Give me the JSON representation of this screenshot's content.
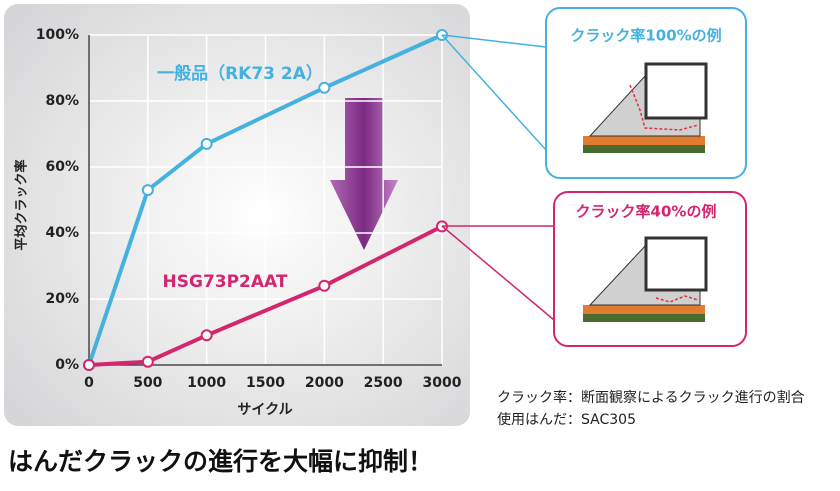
{
  "chart_data": {
    "type": "line",
    "x": [
      0,
      500,
      1000,
      2000,
      3000
    ],
    "series": [
      {
        "name": "一般品（RK73 2A）",
        "color": "#45b1df",
        "values": [
          0,
          53,
          67,
          84,
          100
        ]
      },
      {
        "name": "HSG73P2AAT",
        "color": "#d4256f",
        "values": [
          0,
          1,
          9,
          24,
          42
        ]
      }
    ],
    "xlim": [
      0,
      3000
    ],
    "xticks": [
      0,
      500,
      1000,
      1500,
      2000,
      2500,
      3000
    ],
    "ylim": [
      0,
      100
    ],
    "yticks": [
      {
        "value": 0,
        "label": "0%"
      },
      {
        "value": 20,
        "label": "20%"
      },
      {
        "value": 40,
        "label": "40%"
      },
      {
        "value": 60,
        "label": "60%"
      },
      {
        "value": 80,
        "label": "80%"
      },
      {
        "value": 100,
        "label": "100%"
      }
    ],
    "grid": true,
    "xlabel": "サイクル",
    "ylabel": "平均クラック率",
    "annotations": [
      "クラック率100%の例",
      "クラック率40%の例"
    ],
    "notes": [
      "クラック率：断面観察によるクラック進行の割合",
      "使用はんだ：SAC305"
    ],
    "headline": "はんだクラックの進行を大幅に抑制！"
  }
}
